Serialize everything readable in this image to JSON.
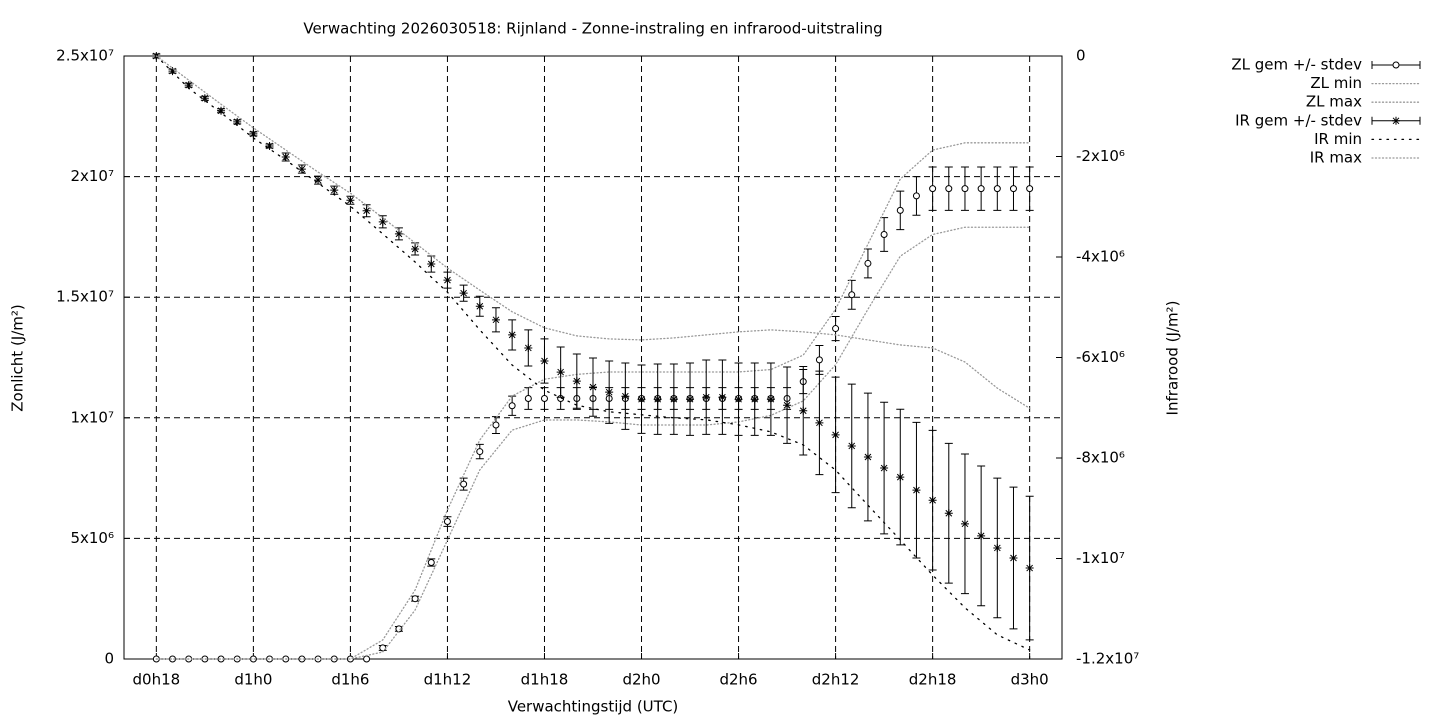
{
  "chart_data": {
    "type": "errorbar-line",
    "title": "Verwachting 2026030518: Rijnland - Zonne-instraling en infrarood-uitstraling",
    "xlabel": "Verwachtingstijd (UTC)",
    "ylabel": "Zonlicht (J/m²)",
    "y2label": "Infrarood (J/m²)",
    "xlim": [
      16,
      74
    ],
    "xticks": [
      {
        "value": 18,
        "label": "d0h18"
      },
      {
        "value": 24,
        "label": "d1h0"
      },
      {
        "value": 30,
        "label": "d1h6"
      },
      {
        "value": 36,
        "label": "d1h12"
      },
      {
        "value": 42,
        "label": "d1h18"
      },
      {
        "value": 48,
        "label": "d2h0"
      },
      {
        "value": 54,
        "label": "d2h6"
      },
      {
        "value": 60,
        "label": "d2h12"
      },
      {
        "value": 66,
        "label": "d2h18"
      },
      {
        "value": 72,
        "label": "d3h0"
      }
    ],
    "ylim": [
      0,
      25000000
    ],
    "yticks": [
      0,
      {
        "value": 5000000,
        "label": "5x10⁶"
      },
      {
        "value": 10000000,
        "label": "1x10⁷"
      },
      {
        "value": 15000000,
        "label": "1.5x10⁷"
      },
      {
        "value": 20000000,
        "label": "2x10⁷"
      },
      {
        "value": 25000000,
        "label": "2.5x10⁷"
      }
    ],
    "y2lim": [
      -12000000,
      0
    ],
    "y2ticks": [
      0,
      {
        "value": -2000000,
        "label": "-2x10⁶"
      },
      {
        "value": -4000000,
        "label": "-4x10⁶"
      },
      {
        "value": -6000000,
        "label": "-6x10⁶"
      },
      {
        "value": -8000000,
        "label": "-8x10⁶"
      },
      {
        "value": -10000000,
        "label": "-1x10⁷"
      },
      {
        "value": -12000000,
        "label": "-1.2x10⁷"
      }
    ],
    "grid": true,
    "legend": "outside-top-right",
    "x": [
      18,
      19,
      20,
      21,
      22,
      23,
      24,
      25,
      26,
      27,
      28,
      29,
      30,
      31,
      32,
      33,
      34,
      35,
      36,
      37,
      38,
      39,
      40,
      41,
      42,
      43,
      44,
      45,
      46,
      47,
      48,
      49,
      50,
      51,
      52,
      53,
      54,
      55,
      56,
      57,
      58,
      59,
      60,
      61,
      62,
      63,
      64,
      65,
      66,
      67,
      68,
      69,
      70,
      71,
      72
    ],
    "series": [
      {
        "name": "ZL gem +/- stdev",
        "style": "errorbars",
        "marker": "circle",
        "color": "#000000",
        "axis": "y",
        "values": [
          0,
          0,
          0,
          0,
          0,
          0,
          0,
          0,
          0,
          0,
          0,
          0,
          0,
          0,
          460000,
          1250000,
          2500000,
          4000000,
          5700000,
          7250000,
          8600000,
          9700000,
          10500000,
          10800000,
          10800000,
          10800000,
          10800000,
          10800000,
          10800000,
          10800000,
          10800000,
          10800000,
          10800000,
          10800000,
          10800000,
          10800000,
          10800000,
          10800000,
          10800000,
          10800000,
          11500000,
          12400000,
          13700000,
          15100000,
          16400000,
          17600000,
          18600000,
          19200000,
          19500000,
          19500000,
          19500000,
          19500000,
          19500000,
          19500000,
          19500000
        ],
        "errors": [
          0,
          0,
          0,
          0,
          0,
          0,
          0,
          0,
          0,
          0,
          0,
          0,
          0,
          0,
          100000,
          100000,
          100000,
          150000,
          200000,
          250000,
          300000,
          350000,
          400000,
          450000,
          450000,
          450000,
          450000,
          450000,
          450000,
          450000,
          450000,
          450000,
          450000,
          450000,
          450000,
          450000,
          450000,
          450000,
          450000,
          450000,
          500000,
          600000,
          500000,
          600000,
          600000,
          700000,
          800000,
          800000,
          900000,
          900000,
          900000,
          900000,
          900000,
          900000,
          900000
        ]
      },
      {
        "name": "ZL min",
        "style": "dotted",
        "color": "#999999",
        "axis": "y",
        "x": [
          18,
          20,
          22,
          24,
          26,
          28,
          30,
          32,
          34,
          36,
          38,
          40,
          42,
          44,
          46,
          48,
          50,
          52,
          54,
          56,
          58,
          60,
          62,
          64,
          66,
          68,
          70,
          72
        ],
        "values": [
          0,
          0,
          0,
          0,
          0,
          0,
          0,
          290000,
          2030000,
          4930000,
          7840000,
          9490000,
          9910000,
          9910000,
          9830000,
          9700000,
          9700000,
          9700000,
          9830000,
          10100000,
          10700000,
          12200000,
          14500000,
          16700000,
          17600000,
          17900000,
          17900000,
          17900000
        ]
      },
      {
        "name": "ZL max",
        "style": "dotted",
        "color": "#999999",
        "axis": "y",
        "x": [
          18,
          20,
          22,
          24,
          26,
          28,
          30,
          32,
          34,
          36,
          38,
          40,
          42,
          44,
          46,
          48,
          50,
          52,
          54,
          56,
          58,
          60,
          62,
          64,
          66,
          68,
          70,
          72
        ],
        "values": [
          0,
          0,
          0,
          0,
          0,
          0,
          0,
          790000,
          2860000,
          6180000,
          9080000,
          10900000,
          11600000,
          11800000,
          11900000,
          11900000,
          11900000,
          11900000,
          11900000,
          12000000,
          12600000,
          14500000,
          17200000,
          19900000,
          21100000,
          21400000,
          21400000,
          21400000
        ]
      },
      {
        "name": "IR gem +/- stdev",
        "style": "errorbars",
        "marker": "star",
        "color": "#000000",
        "axis": "y2",
        "values": [
          0,
          -300000,
          -580000,
          -840000,
          -1090000,
          -1310000,
          -1550000,
          -1790000,
          -2010000,
          -2250000,
          -2470000,
          -2670000,
          -2870000,
          -3080000,
          -3300000,
          -3540000,
          -3840000,
          -4140000,
          -4460000,
          -4720000,
          -4980000,
          -5250000,
          -5550000,
          -5810000,
          -6070000,
          -6290000,
          -6470000,
          -6590000,
          -6690000,
          -6770000,
          -6830000,
          -6830000,
          -6830000,
          -6830000,
          -6790000,
          -6790000,
          -6830000,
          -6830000,
          -6830000,
          -6950000,
          -7060000,
          -7300000,
          -7540000,
          -7760000,
          -7980000,
          -8200000,
          -8380000,
          -8640000,
          -8840000,
          -9100000,
          -9310000,
          -9550000,
          -9790000,
          -9990000,
          -10190000
        ],
        "errors": [
          40000,
          40000,
          40000,
          40000,
          40000,
          40000,
          40000,
          40000,
          80000,
          80000,
          80000,
          80000,
          80000,
          120000,
          120000,
          120000,
          120000,
          160000,
          160000,
          160000,
          200000,
          240000,
          300000,
          360000,
          440000,
          500000,
          540000,
          580000,
          620000,
          660000,
          680000,
          700000,
          700000,
          720000,
          740000,
          740000,
          720000,
          720000,
          720000,
          760000,
          880000,
          1030000,
          1150000,
          1230000,
          1270000,
          1310000,
          1350000,
          1350000,
          1390000,
          1390000,
          1390000,
          1390000,
          1390000,
          1410000,
          1430000
        ]
      },
      {
        "name": "IR min",
        "style": "sparse-dotted",
        "color": "#000000",
        "axis": "y2",
        "x": [
          18,
          20,
          22,
          24,
          26,
          28,
          30,
          32,
          34,
          36,
          38,
          40,
          42,
          44,
          46,
          48,
          50,
          52,
          54,
          56,
          58,
          60,
          62,
          64,
          66,
          68,
          70,
          72
        ],
        "values": [
          0,
          -640000,
          -1130000,
          -1630000,
          -2070000,
          -2530000,
          -2990000,
          -3540000,
          -4100000,
          -4700000,
          -5450000,
          -6150000,
          -6650000,
          -6950000,
          -7080000,
          -7140000,
          -7200000,
          -7240000,
          -7340000,
          -7480000,
          -7740000,
          -8240000,
          -8940000,
          -9630000,
          -10330000,
          -10980000,
          -11520000,
          -11820000
        ]
      },
      {
        "name": "IR max",
        "style": "dotted",
        "color": "#999999",
        "axis": "y2",
        "x": [
          18,
          20,
          22,
          24,
          26,
          28,
          30,
          32,
          34,
          36,
          38,
          40,
          42,
          44,
          46,
          48,
          50,
          52,
          54,
          56,
          58,
          60,
          62,
          64,
          66,
          68,
          70,
          72
        ],
        "values": [
          0,
          -480000,
          -960000,
          -1430000,
          -1870000,
          -2310000,
          -2730000,
          -3220000,
          -3720000,
          -4220000,
          -4660000,
          -5090000,
          -5410000,
          -5570000,
          -5630000,
          -5650000,
          -5610000,
          -5550000,
          -5490000,
          -5450000,
          -5490000,
          -5550000,
          -5650000,
          -5750000,
          -5810000,
          -6090000,
          -6610000,
          -7010000
        ]
      }
    ]
  }
}
